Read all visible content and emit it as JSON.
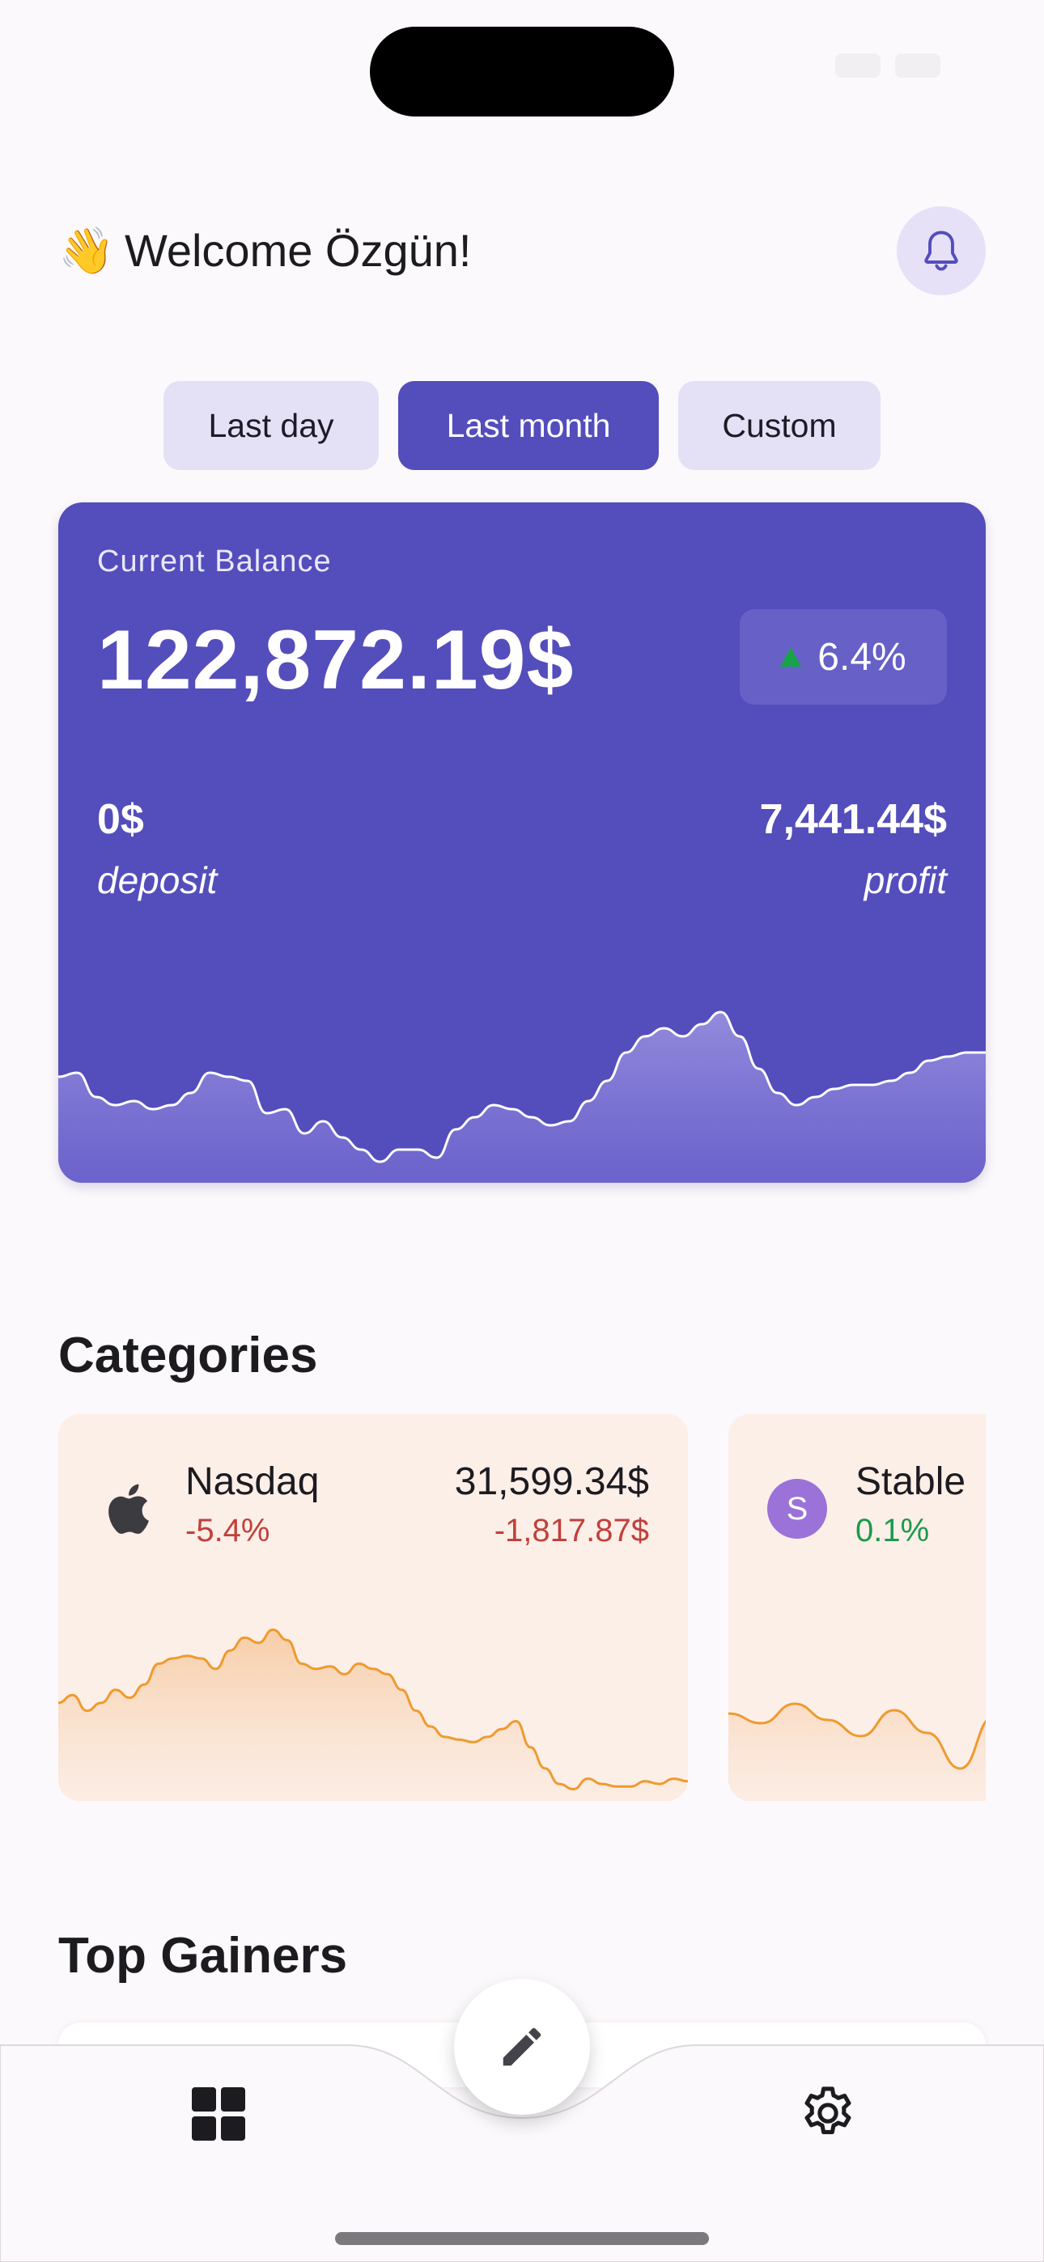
{
  "status_bar": {
    "time": ""
  },
  "header": {
    "greeting_emoji": "👋",
    "greeting": "Welcome Özgün!",
    "notification_icon": "bell-icon"
  },
  "period_tabs": [
    {
      "label": "Last day",
      "active": false
    },
    {
      "label": "Last month",
      "active": true
    },
    {
      "label": "Custom",
      "active": false
    }
  ],
  "balance": {
    "label": "Current Balance",
    "value": "122,872.19$",
    "change": "6.4%",
    "change_direction": "up",
    "deposit_value": "0$",
    "deposit_label": "deposit",
    "profit_value": "7,441.44$",
    "profit_label": "profit",
    "trend": [
      62,
      63,
      57,
      55,
      56,
      54,
      55,
      58,
      63,
      62,
      61,
      53,
      54,
      48,
      51,
      47,
      44,
      41,
      44,
      44,
      42,
      49,
      52,
      55,
      54,
      52,
      50,
      51,
      56,
      61,
      68,
      72,
      74,
      72,
      75,
      78,
      72,
      64,
      58,
      55,
      57,
      59,
      60,
      60,
      61,
      63,
      66,
      67,
      68,
      68
    ]
  },
  "categories": {
    "title": "Categories",
    "items": [
      {
        "icon": "apple-logo-icon",
        "name": "Nasdaq",
        "percent": "-5.4%",
        "amount": "31,599.34$",
        "change": "-1,817.87$",
        "trend": [
          55,
          58,
          52,
          55,
          60,
          57,
          62,
          70,
          72,
          73,
          72,
          68,
          75,
          80,
          78,
          83,
          79,
          70,
          68,
          69,
          66,
          70,
          68,
          66,
          60,
          52,
          46,
          42,
          41,
          40,
          42,
          45,
          48,
          38,
          30,
          24,
          22,
          26,
          24,
          23,
          23,
          25,
          24,
          26,
          25
        ]
      },
      {
        "icon": "S",
        "name": "Stable",
        "percent": "0.1%",
        "trend": [
          50,
          47,
          53,
          48,
          43,
          51,
          44,
          33,
          49,
          55,
          50,
          46,
          50,
          48,
          51,
          49,
          52,
          47,
          50,
          51
        ]
      }
    ]
  },
  "top_gainers": {
    "title": "Top Gainers"
  },
  "bottom_nav": {
    "home_icon": "grid-icon",
    "fab_icon": "pencil-icon",
    "settings_icon": "gear-icon"
  }
}
